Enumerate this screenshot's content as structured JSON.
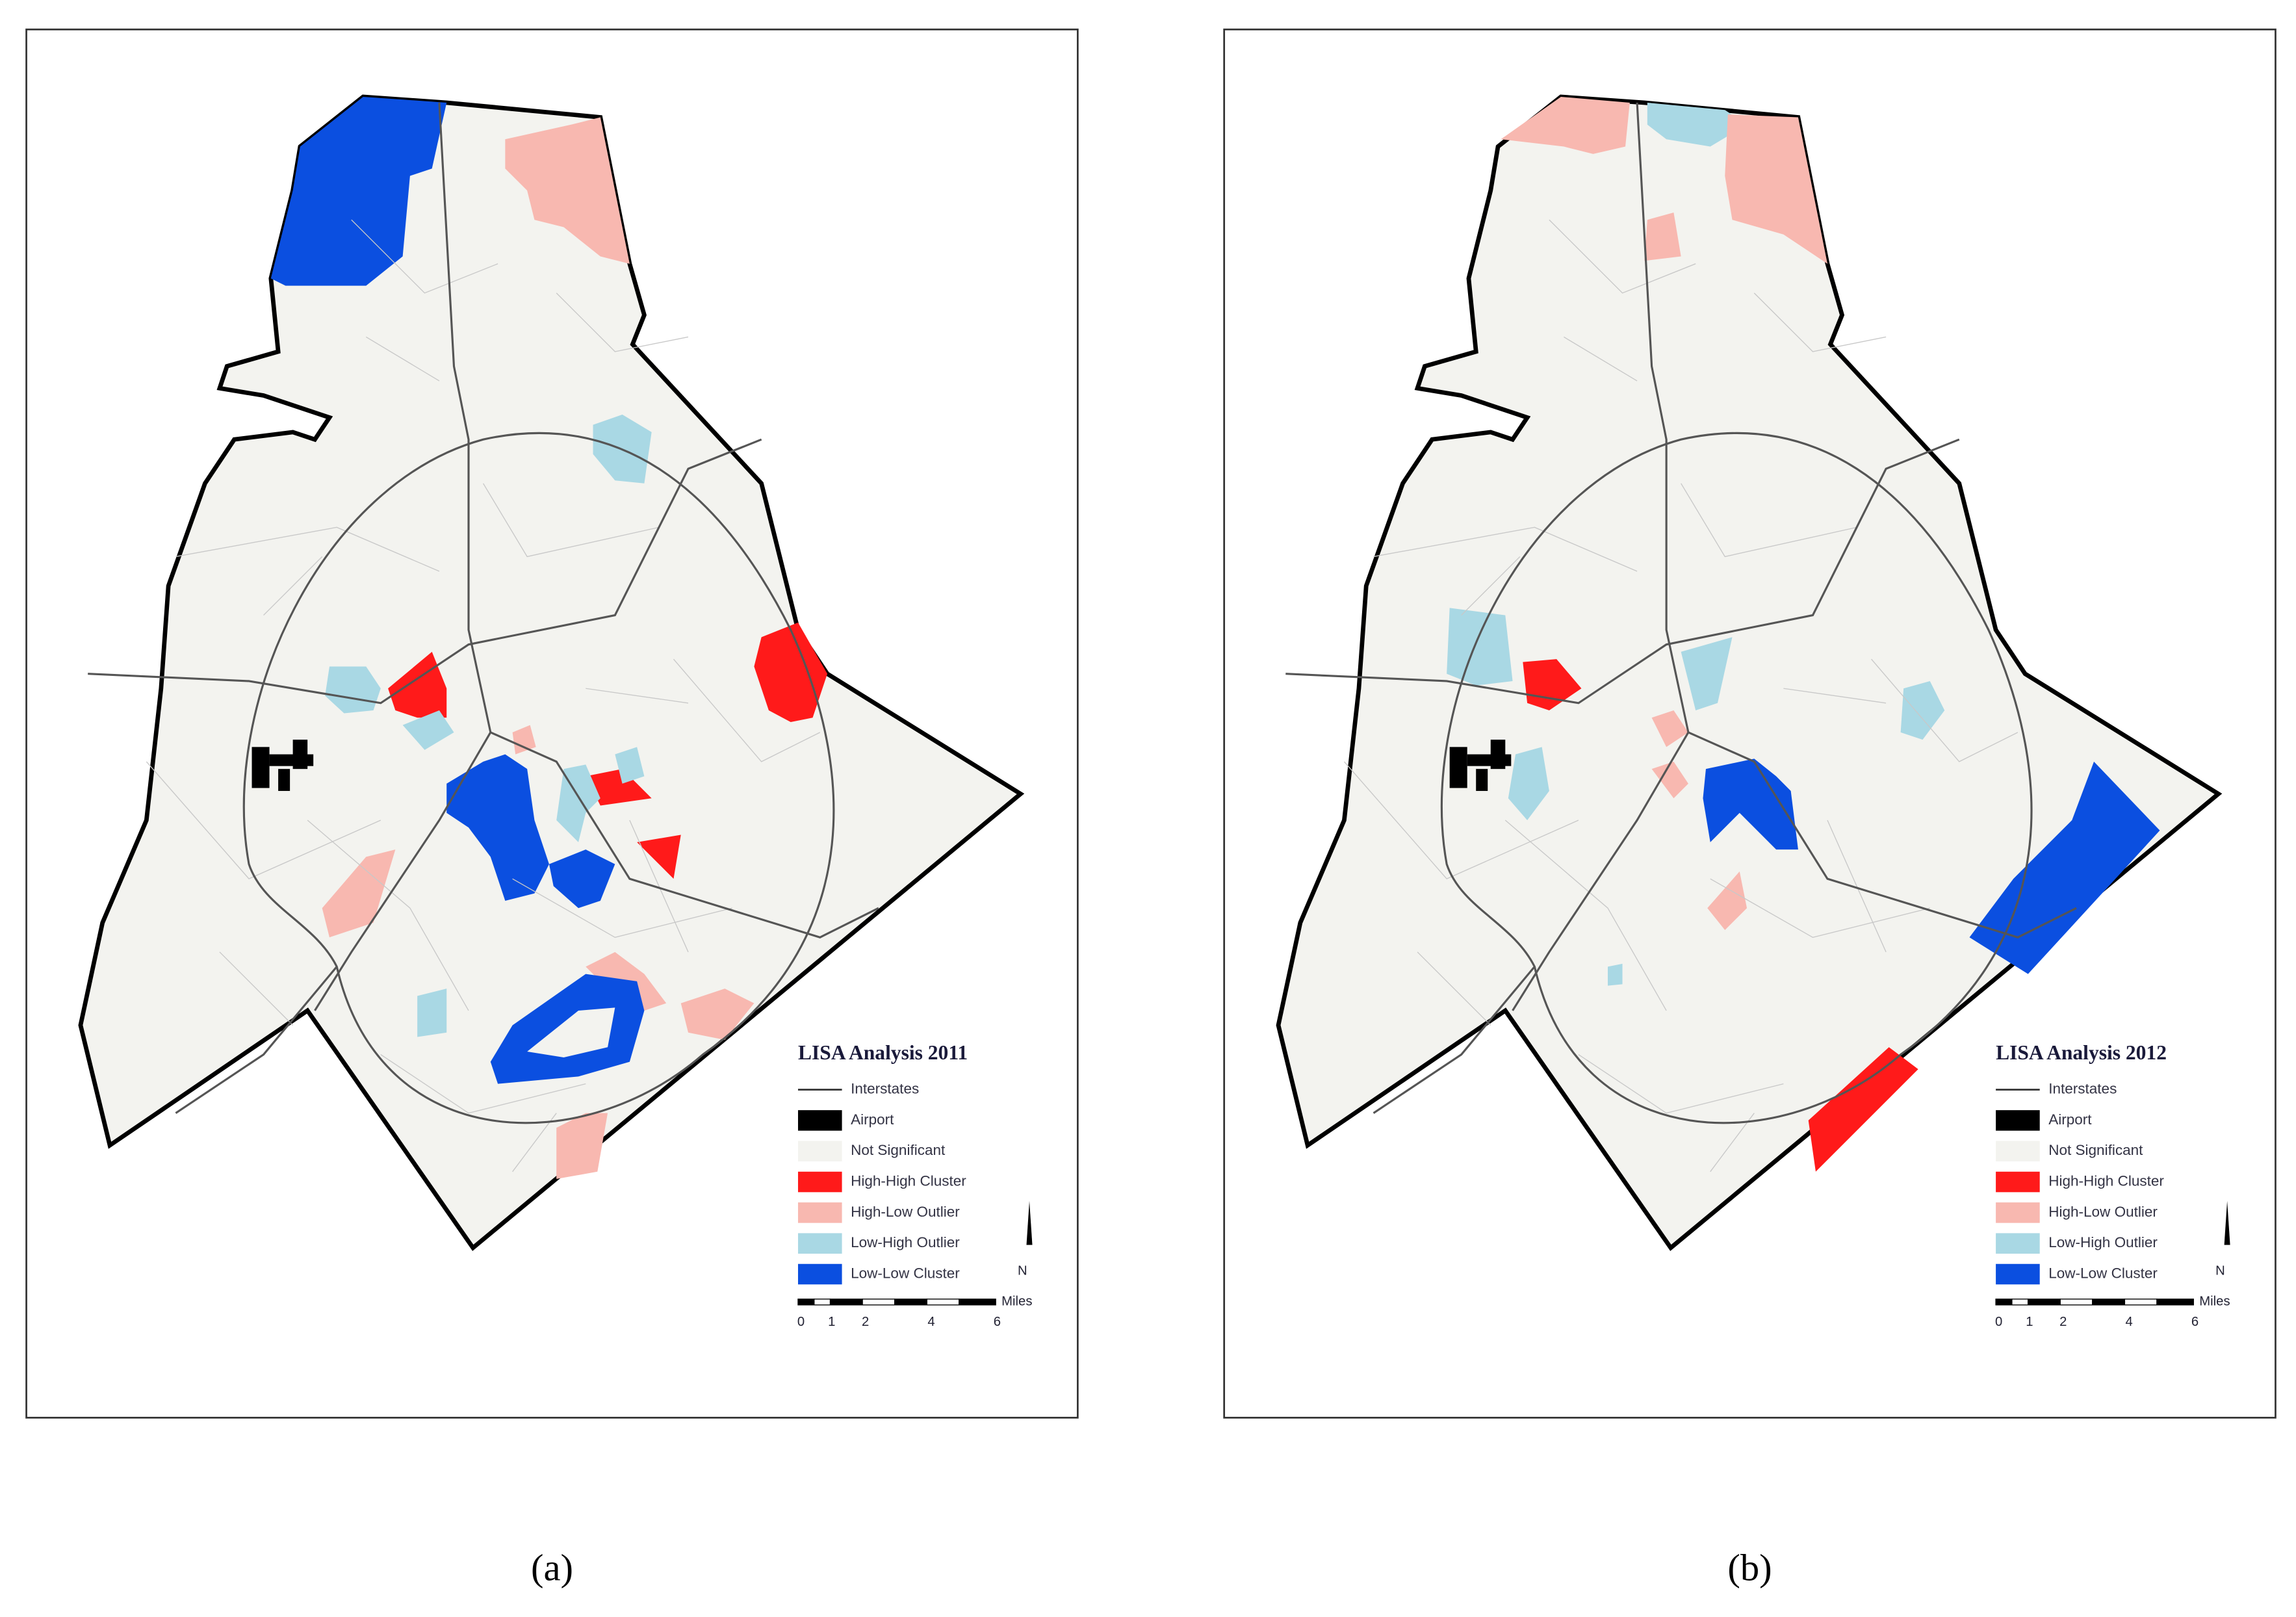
{
  "panels": [
    {
      "title": "LISA Analysis 2011",
      "caption": "(a)"
    },
    {
      "title": "LISA Analysis 2012",
      "caption": "(b)"
    }
  ],
  "legend": {
    "items": [
      {
        "label": "Interstates",
        "color": "#333333"
      },
      {
        "label": "Airport",
        "color": "#000000"
      },
      {
        "label": "Not Significant",
        "color": "#f3f3ef"
      },
      {
        "label": "High-High Cluster",
        "color": "#ff1a1a"
      },
      {
        "label": "High-Low Outlier",
        "color": "#f8b8b0"
      },
      {
        "label": "Low-High Outlier",
        "color": "#a9d8e4"
      },
      {
        "label": "Low-Low Cluster",
        "color": "#0b4fe0"
      }
    ]
  },
  "scale": {
    "unit": "Miles",
    "labels": [
      "0",
      "1",
      "2",
      "4",
      "6"
    ],
    "north": "N"
  }
}
